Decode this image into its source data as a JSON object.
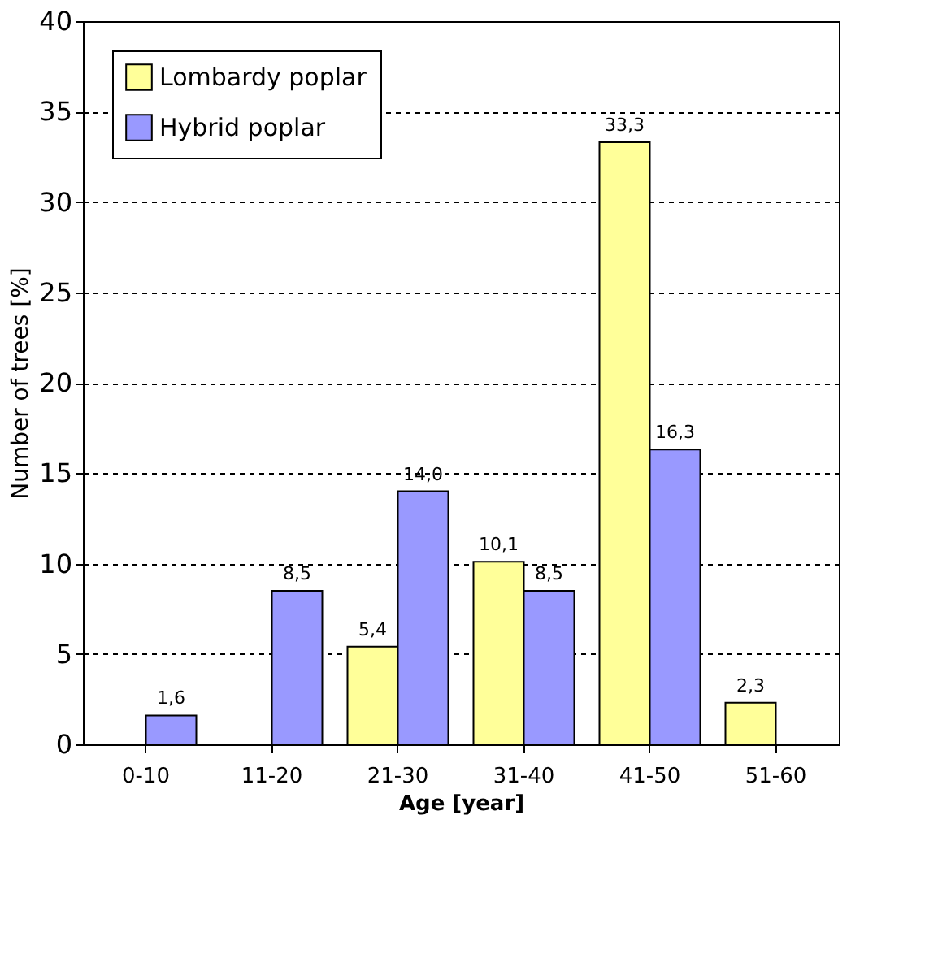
{
  "chart_data": {
    "type": "bar",
    "xlabel": "Age [year]",
    "ylabel": "Number of trees [%]",
    "categories": [
      "0-10",
      "11-20",
      "21-30",
      "31-40",
      "41-50",
      "51-60"
    ],
    "series": [
      {
        "name": "Lombardy poplar",
        "color": "#ffff99",
        "values": [
          null,
          null,
          5.4,
          10.1,
          33.3,
          2.3
        ],
        "value_labels": [
          null,
          null,
          "5,4",
          "10,1",
          "33,3",
          "2,3"
        ]
      },
      {
        "name": "Hybrid poplar",
        "color": "#9999ff",
        "values": [
          1.6,
          8.5,
          14.0,
          8.5,
          16.3,
          null
        ],
        "value_labels": [
          "1,6",
          "8,5",
          "14,0",
          "8,5",
          "16,3",
          null
        ]
      }
    ],
    "ylim": [
      0,
      40
    ],
    "yticks": [
      0,
      5,
      10,
      15,
      20,
      25,
      30,
      35,
      40
    ],
    "grid": "y",
    "legend": "top left"
  }
}
